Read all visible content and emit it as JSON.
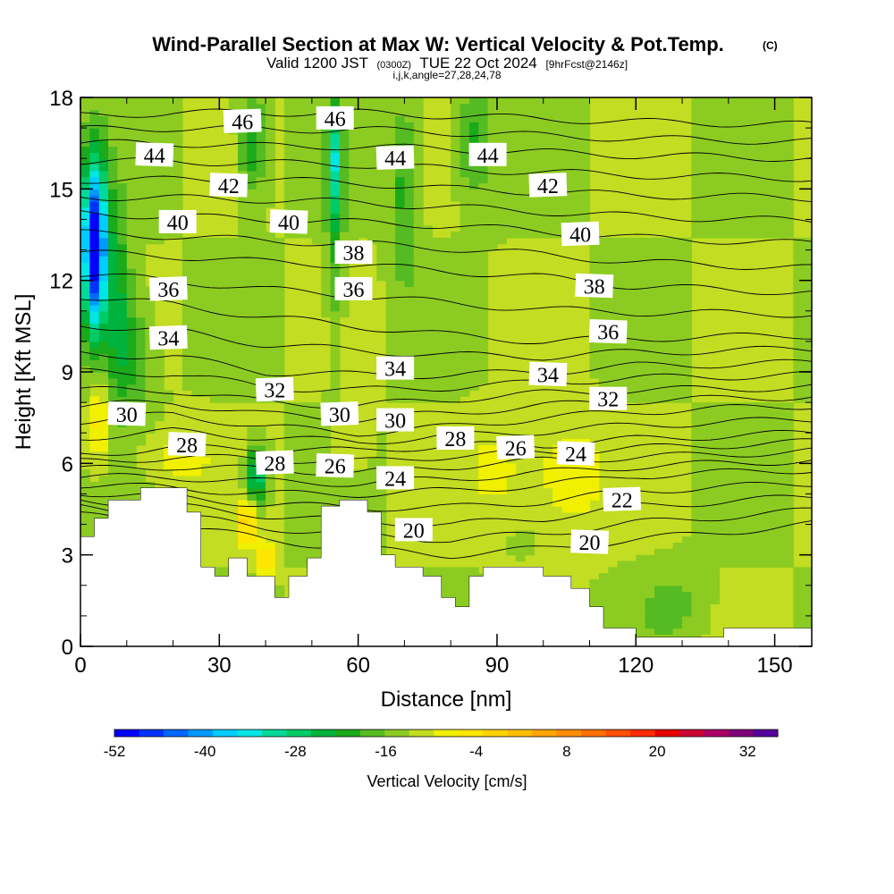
{
  "chart_data": {
    "type": "heatmap",
    "title": "Wind-Parallel Section at Max W: Vertical Velocity & Pot.Temp.",
    "title_mark": "(C)",
    "subtitle": {
      "lead": "Valid 1200 JST",
      "utc": "(0300Z)",
      "date": "TUE 22 Oct 2024",
      "fcst": "[9hrFcst@2146z]"
    },
    "subtitle2": "i,j,k,angle=27,28,24,78",
    "xlabel": "Distance [nm]",
    "ylabel": "Height [Kft MSL]",
    "xlim": [
      0,
      158
    ],
    "ylim": [
      0,
      18
    ],
    "x_ticks": [
      0,
      30,
      60,
      90,
      120,
      150
    ],
    "y_ticks": [
      0,
      3,
      6,
      9,
      12,
      15,
      18
    ],
    "colorbar": {
      "label": "Vertical Velocity [cm/s]",
      "tick_labels": [
        "-52",
        "-40",
        "-28",
        "-16",
        "-4",
        "8",
        "20",
        "32"
      ],
      "tick_values": [
        -52,
        -40,
        -28,
        -16,
        -4,
        8,
        20,
        32
      ],
      "bounds": [
        -52,
        36
      ],
      "step": 4,
      "colors": [
        "#0000ff",
        "#0033ff",
        "#0066ff",
        "#0099ff",
        "#00ccff",
        "#00e5e5",
        "#00d99a",
        "#00cc66",
        "#00b33c",
        "#1aaa1a",
        "#55bb22",
        "#8ccc22",
        "#c2dd22",
        "#f0f000",
        "#ffe600",
        "#ffd200",
        "#ffbe00",
        "#ffa500",
        "#ff8c00",
        "#ff7000",
        "#ff5000",
        "#ff2a00",
        "#e60000",
        "#cc0033",
        "#aa0066",
        "#80007a",
        "#550099"
      ]
    },
    "background_value_cm_s": -4,
    "terrain_profile": [
      [
        0,
        3.6
      ],
      [
        3,
        3.6
      ],
      [
        3,
        4.2
      ],
      [
        6,
        4.2
      ],
      [
        6,
        4.8
      ],
      [
        13,
        4.8
      ],
      [
        13,
        5.2
      ],
      [
        23,
        5.2
      ],
      [
        23,
        4.4
      ],
      [
        26,
        4.4
      ],
      [
        26,
        2.6
      ],
      [
        29,
        2.6
      ],
      [
        29,
        2.3
      ],
      [
        32,
        2.3
      ],
      [
        32,
        2.9
      ],
      [
        36,
        2.9
      ],
      [
        36,
        2.3
      ],
      [
        42,
        2.3
      ],
      [
        42,
        1.6
      ],
      [
        45,
        1.6
      ],
      [
        45,
        2.3
      ],
      [
        49,
        2.3
      ],
      [
        49,
        2.9
      ],
      [
        52,
        2.9
      ],
      [
        52,
        4.6
      ],
      [
        56,
        4.6
      ],
      [
        56,
        4.8
      ],
      [
        62,
        4.8
      ],
      [
        62,
        4.4
      ],
      [
        65,
        4.4
      ],
      [
        65,
        3.0
      ],
      [
        68,
        3.0
      ],
      [
        68,
        2.6
      ],
      [
        74,
        2.6
      ],
      [
        74,
        2.3
      ],
      [
        78,
        2.3
      ],
      [
        78,
        1.6
      ],
      [
        81,
        1.6
      ],
      [
        81,
        1.3
      ],
      [
        84,
        1.3
      ],
      [
        84,
        2.3
      ],
      [
        87,
        2.3
      ],
      [
        87,
        2.6
      ],
      [
        100,
        2.6
      ],
      [
        100,
        2.3
      ],
      [
        106,
        2.3
      ],
      [
        106,
        1.9
      ],
      [
        110,
        1.9
      ],
      [
        110,
        1.3
      ],
      [
        113,
        1.3
      ],
      [
        113,
        0.6
      ],
      [
        120,
        0.6
      ],
      [
        120,
        0.3
      ],
      [
        139,
        0.3
      ],
      [
        139,
        0.6
      ],
      [
        158,
        0.6
      ]
    ],
    "wind_anomalies": [
      {
        "x": 3,
        "y": 12.5,
        "sx": 2.5,
        "sy": 2.6,
        "w": -34
      },
      {
        "x": 3,
        "y": 14,
        "sx": 3,
        "sy": 2.5,
        "w": -22
      },
      {
        "x": 8,
        "y": 11,
        "sx": 3,
        "sy": 3,
        "w": -14
      },
      {
        "x": 37,
        "y": 16.5,
        "sx": 3,
        "sy": 1.8,
        "w": -12
      },
      {
        "x": 55,
        "y": 16,
        "sx": 1.6,
        "sy": 2,
        "w": -20
      },
      {
        "x": 55,
        "y": 12.5,
        "sx": 2,
        "sy": 3,
        "w": -8
      },
      {
        "x": 70,
        "y": 15,
        "sx": 3,
        "sy": 3,
        "w": -10
      },
      {
        "x": 85,
        "y": 16.5,
        "sx": 4,
        "sy": 1.8,
        "w": -10
      },
      {
        "x": 38,
        "y": 5.6,
        "sx": 2.2,
        "sy": 0.9,
        "w": -22
      },
      {
        "x": 36,
        "y": 4,
        "sx": 1.6,
        "sy": 0.8,
        "w": 16
      },
      {
        "x": 40,
        "y": 2.8,
        "sx": 1.6,
        "sy": 0.7,
        "w": 14
      },
      {
        "x": 4,
        "y": 7.4,
        "sx": 2,
        "sy": 1.3,
        "w": 12
      },
      {
        "x": 20,
        "y": 6.2,
        "sx": 8,
        "sy": 1,
        "w": 6
      },
      {
        "x": 105,
        "y": 5.6,
        "sx": 8,
        "sy": 1.8,
        "w": 8
      },
      {
        "x": 90,
        "y": 5.8,
        "sx": 6,
        "sy": 1.5,
        "w": 6
      },
      {
        "x": 128,
        "y": 1.4,
        "sx": 7,
        "sy": 1.2,
        "w": -5
      },
      {
        "x": 58,
        "y": 6.6,
        "sx": 4,
        "sy": 1,
        "w": 4
      },
      {
        "x": 12,
        "y": 9.6,
        "sx": 4,
        "sy": 2,
        "w": -8
      }
    ],
    "theta_contours": [
      20,
      21,
      22,
      23,
      24,
      25,
      26,
      27,
      28,
      29,
      30,
      31,
      32,
      33,
      34,
      35,
      36,
      37,
      38,
      39,
      40,
      41,
      42,
      43,
      44,
      45,
      46
    ],
    "theta_levels": [
      {
        "theta": 20,
        "h": [
          4.3,
          4.0,
          3.5,
          3.2,
          3.0,
          3.2,
          3.5,
          4.0
        ]
      },
      {
        "theta": 22,
        "h": [
          4.8,
          4.6,
          4.3,
          4.1,
          4.0,
          4.2,
          4.6,
          4.9
        ]
      },
      {
        "theta": 24,
        "h": [
          5.3,
          5.2,
          5.0,
          5.0,
          5.1,
          5.3,
          5.6,
          5.8
        ]
      },
      {
        "theta": 26,
        "h": [
          5.8,
          5.9,
          5.8,
          5.7,
          5.9,
          6.1,
          6.2,
          6.4
        ]
      },
      {
        "theta": 28,
        "h": [
          6.3,
          6.5,
          6.5,
          6.4,
          6.6,
          6.6,
          6.8,
          7.0
        ]
      },
      {
        "theta": 30,
        "h": [
          7.4,
          7.6,
          7.2,
          7.0,
          7.2,
          7.5,
          7.7,
          7.9
        ]
      },
      {
        "theta": 32,
        "h": [
          8.4,
          8.4,
          8.0,
          7.9,
          8.1,
          8.3,
          8.4,
          8.5
        ]
      },
      {
        "theta": 34,
        "h": [
          9.6,
          9.5,
          9.0,
          8.9,
          8.9,
          9.0,
          9.2,
          9.3
        ]
      },
      {
        "theta": 36,
        "h": [
          11.5,
          11.2,
          10.8,
          10.5,
          10.2,
          10.0,
          10.1,
          10.2
        ]
      },
      {
        "theta": 38,
        "h": [
          12.9,
          12.8,
          12.6,
          12.5,
          12.3,
          12.1,
          11.8,
          11.6
        ]
      },
      {
        "theta": 40,
        "h": [
          14.2,
          14.1,
          14.0,
          13.9,
          13.8,
          13.6,
          13.4,
          13.2
        ]
      },
      {
        "theta": 42,
        "h": [
          15.3,
          15.3,
          15.3,
          15.2,
          15.0,
          14.9,
          14.8,
          14.7
        ]
      },
      {
        "theta": 44,
        "h": [
          16.5,
          16.5,
          16.4,
          16.4,
          16.3,
          16.2,
          16.1,
          16.0
        ]
      },
      {
        "theta": 46,
        "h": [
          17.4,
          17.5,
          17.5,
          17.5,
          17.4,
          17.3,
          17.2,
          17.1
        ]
      }
    ],
    "theta_x_nodes": [
      0,
      20,
      40,
      60,
      80,
      100,
      120,
      158
    ],
    "contour_labels": [
      {
        "text": "46",
        "x": 35,
        "y": 17.2
      },
      {
        "text": "46",
        "x": 55,
        "y": 17.3
      },
      {
        "text": "44",
        "x": 16,
        "y": 16.1
      },
      {
        "text": "44",
        "x": 68,
        "y": 16.0
      },
      {
        "text": "44",
        "x": 88,
        "y": 16.1
      },
      {
        "text": "42",
        "x": 32,
        "y": 15.1
      },
      {
        "text": "42",
        "x": 101,
        "y": 15.1
      },
      {
        "text": "40",
        "x": 21,
        "y": 13.9
      },
      {
        "text": "40",
        "x": 45,
        "y": 13.9
      },
      {
        "text": "40",
        "x": 108,
        "y": 13.5
      },
      {
        "text": "38",
        "x": 59,
        "y": 12.9
      },
      {
        "text": "38",
        "x": 111,
        "y": 11.8
      },
      {
        "text": "36",
        "x": 19,
        "y": 11.7
      },
      {
        "text": "36",
        "x": 59,
        "y": 11.7
      },
      {
        "text": "36",
        "x": 114,
        "y": 10.3
      },
      {
        "text": "34",
        "x": 19,
        "y": 10.1
      },
      {
        "text": "34",
        "x": 68,
        "y": 9.1
      },
      {
        "text": "34",
        "x": 101,
        "y": 8.9
      },
      {
        "text": "32",
        "x": 42,
        "y": 8.4
      },
      {
        "text": "32",
        "x": 114,
        "y": 8.1
      },
      {
        "text": "30",
        "x": 10,
        "y": 7.6
      },
      {
        "text": "30",
        "x": 56,
        "y": 7.6
      },
      {
        "text": "30",
        "x": 68,
        "y": 7.4
      },
      {
        "text": "28",
        "x": 23,
        "y": 6.6
      },
      {
        "text": "28",
        "x": 42,
        "y": 6.0
      },
      {
        "text": "28",
        "x": 81,
        "y": 6.8
      },
      {
        "text": "26",
        "x": 55,
        "y": 5.9
      },
      {
        "text": "26",
        "x": 94,
        "y": 6.5
      },
      {
        "text": "24",
        "x": 68,
        "y": 5.5
      },
      {
        "text": "24",
        "x": 107,
        "y": 6.3
      },
      {
        "text": "22",
        "x": 117,
        "y": 4.8
      },
      {
        "text": "20",
        "x": 72,
        "y": 3.8
      },
      {
        "text": "20",
        "x": 110,
        "y": 3.4
      }
    ]
  }
}
